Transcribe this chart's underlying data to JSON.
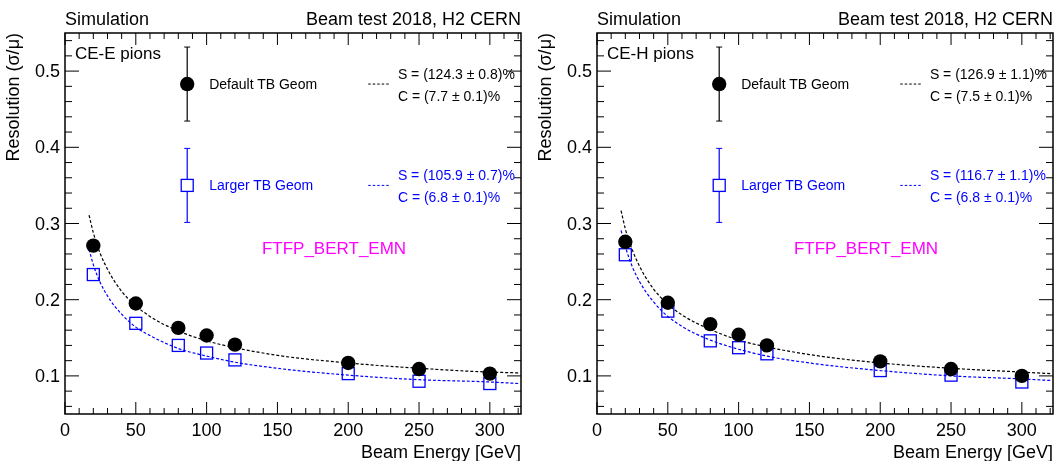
{
  "chart_data": [
    {
      "type": "scatter",
      "title": "Simulation",
      "subtitle": "Beam test 2018, H2 CERN",
      "xlabel": "Beam Energy [GeV]",
      "ylabel": "Resolution (σ/μ)",
      "annotations": [
        "CE-E pions",
        "FTFP_BERT_EMN",
        "S = (124.3 ± 0.8)%",
        "C = (7.7 ± 0.1)%",
        "S = (105.9 ± 0.7)%",
        "C = (6.8 ± 0.1)%"
      ],
      "xlim": [
        0,
        322
      ],
      "xticks": [
        0,
        {
          "value": 10,
          "label": null
        },
        {
          "value": 20,
          "label": null
        },
        {
          "value": 30,
          "label": null
        },
        {
          "value": 40,
          "label": null
        },
        50,
        {
          "value": 60,
          "label": null
        },
        {
          "value": 70,
          "label": null
        },
        {
          "value": 80,
          "label": null
        },
        {
          "value": 90,
          "label": null
        },
        100,
        {
          "value": 110,
          "label": null
        },
        {
          "value": 120,
          "label": null
        },
        {
          "value": 130,
          "label": null
        },
        {
          "value": 140,
          "label": null
        },
        150,
        {
          "value": 160,
          "label": null
        },
        {
          "value": 170,
          "label": null
        },
        {
          "value": 180,
          "label": null
        },
        {
          "value": 190,
          "label": null
        },
        200,
        {
          "value": 210,
          "label": null
        },
        {
          "value": 220,
          "label": null
        },
        {
          "value": 230,
          "label": null
        },
        {
          "value": 240,
          "label": null
        },
        250,
        {
          "value": 260,
          "label": null
        },
        {
          "value": 270,
          "label": null
        },
        {
          "value": 280,
          "label": null
        },
        {
          "value": 290,
          "label": null
        },
        300,
        {
          "value": 310,
          "label": null
        },
        {
          "value": 320,
          "label": null
        }
      ],
      "ylim": [
        0.05,
        0.55
      ],
      "yticks": [
        {
          "value": 0.06,
          "label": null
        },
        {
          "value": 0.08,
          "label": null
        },
        0.1,
        {
          "value": 0.12,
          "label": null
        },
        {
          "value": 0.14,
          "label": null
        },
        {
          "value": 0.16,
          "label": null
        },
        {
          "value": 0.18,
          "label": null
        },
        0.2,
        {
          "value": 0.22,
          "label": null
        },
        {
          "value": 0.24,
          "label": null
        },
        {
          "value": 0.26,
          "label": null
        },
        {
          "value": 0.28,
          "label": null
        },
        0.3,
        {
          "value": 0.32,
          "label": null
        },
        {
          "value": 0.34,
          "label": null
        },
        {
          "value": 0.36,
          "label": null
        },
        {
          "value": 0.38,
          "label": null
        },
        0.4,
        {
          "value": 0.42,
          "label": null
        },
        {
          "value": 0.44,
          "label": null
        },
        {
          "value": 0.46,
          "label": null
        },
        {
          "value": 0.48,
          "label": null
        },
        0.5,
        {
          "value": 0.52,
          "label": null
        },
        {
          "value": 0.54,
          "label": null
        }
      ],
      "legend": "top",
      "series": [
        {
          "name": "Default TB Geom",
          "type": "scatter",
          "marker": "circle",
          "color": "#000000",
          "x": [
            20,
            50,
            80,
            100,
            120,
            200,
            250,
            300
          ],
          "values": [
            0.271,
            0.195,
            0.163,
            0.153,
            0.141,
            0.117,
            0.109,
            0.103
          ]
        },
        {
          "name": "Larger TB Geom",
          "type": "scatter",
          "marker": "square",
          "color": "#0000ff",
          "x": [
            20,
            50,
            80,
            100,
            120,
            200,
            250,
            300
          ],
          "values": [
            0.233,
            0.169,
            0.14,
            0.13,
            0.121,
            0.103,
            0.093,
            0.09
          ]
        },
        {
          "type": "line",
          "line_style": "dashed",
          "color": "#000000",
          "x": [
            17,
            20,
            25,
            30,
            40,
            50,
            60,
            80,
            100,
            120,
            150,
            200,
            250,
            300,
            320
          ],
          "values": [
            0.311,
            0.288,
            0.26,
            0.24,
            0.211,
            0.192,
            0.178,
            0.159,
            0.146,
            0.137,
            0.127,
            0.117,
            0.11,
            0.105,
            0.104
          ]
        },
        {
          "type": "line",
          "line_style": "dashed",
          "color": "#0000ff",
          "x": [
            17,
            20,
            25,
            30,
            40,
            50,
            60,
            80,
            100,
            120,
            150,
            200,
            250,
            300,
            320
          ],
          "values": [
            0.266,
            0.246,
            0.222,
            0.205,
            0.181,
            0.164,
            0.153,
            0.136,
            0.126,
            0.118,
            0.11,
            0.101,
            0.095,
            0.092,
            0.09
          ]
        }
      ]
    },
    {
      "type": "scatter",
      "title": "Simulation",
      "subtitle": "Beam test 2018, H2 CERN",
      "xlabel": "Beam Energy [GeV]",
      "ylabel": "Resolution (σ/μ)",
      "annotations": [
        "CE-H pions",
        "FTFP_BERT_EMN",
        "S = (126.9 ± 1.1)%",
        "C = (7.5 ± 0.1)%",
        "S = (116.7 ± 1.1)%",
        "C = (6.8 ± 0.1)%"
      ],
      "xlim": [
        0,
        322
      ],
      "xticks": [
        0,
        {
          "value": 10,
          "label": null
        },
        {
          "value": 20,
          "label": null
        },
        {
          "value": 30,
          "label": null
        },
        {
          "value": 40,
          "label": null
        },
        50,
        {
          "value": 60,
          "label": null
        },
        {
          "value": 70,
          "label": null
        },
        {
          "value": 80,
          "label": null
        },
        {
          "value": 90,
          "label": null
        },
        100,
        {
          "value": 110,
          "label": null
        },
        {
          "value": 120,
          "label": null
        },
        {
          "value": 130,
          "label": null
        },
        {
          "value": 140,
          "label": null
        },
        150,
        {
          "value": 160,
          "label": null
        },
        {
          "value": 170,
          "label": null
        },
        {
          "value": 180,
          "label": null
        },
        {
          "value": 190,
          "label": null
        },
        200,
        {
          "value": 210,
          "label": null
        },
        {
          "value": 220,
          "label": null
        },
        {
          "value": 230,
          "label": null
        },
        {
          "value": 240,
          "label": null
        },
        250,
        {
          "value": 260,
          "label": null
        },
        {
          "value": 270,
          "label": null
        },
        {
          "value": 280,
          "label": null
        },
        {
          "value": 290,
          "label": null
        },
        300,
        {
          "value": 310,
          "label": null
        },
        {
          "value": 320,
          "label": null
        }
      ],
      "ylim": [
        0.05,
        0.55
      ],
      "yticks": [
        {
          "value": 0.06,
          "label": null
        },
        {
          "value": 0.08,
          "label": null
        },
        0.1,
        {
          "value": 0.12,
          "label": null
        },
        {
          "value": 0.14,
          "label": null
        },
        {
          "value": 0.16,
          "label": null
        },
        {
          "value": 0.18,
          "label": null
        },
        0.2,
        {
          "value": 0.22,
          "label": null
        },
        {
          "value": 0.24,
          "label": null
        },
        {
          "value": 0.26,
          "label": null
        },
        {
          "value": 0.28,
          "label": null
        },
        0.3,
        {
          "value": 0.32,
          "label": null
        },
        {
          "value": 0.34,
          "label": null
        },
        {
          "value": 0.36,
          "label": null
        },
        {
          "value": 0.38,
          "label": null
        },
        0.4,
        {
          "value": 0.42,
          "label": null
        },
        {
          "value": 0.44,
          "label": null
        },
        {
          "value": 0.46,
          "label": null
        },
        {
          "value": 0.48,
          "label": null
        },
        0.5,
        {
          "value": 0.52,
          "label": null
        },
        {
          "value": 0.54,
          "label": null
        }
      ],
      "legend": "top",
      "series": [
        {
          "name": "Default TB Geom",
          "type": "scatter",
          "marker": "circle",
          "color": "#000000",
          "x": [
            20,
            50,
            80,
            100,
            120,
            200,
            250,
            300
          ],
          "values": [
            0.276,
            0.196,
            0.168,
            0.154,
            0.14,
            0.119,
            0.109,
            0.1
          ]
        },
        {
          "name": "Larger TB Geom",
          "type": "scatter",
          "marker": "square",
          "color": "#0000ff",
          "x": [
            20,
            50,
            80,
            100,
            120,
            200,
            250,
            300
          ],
          "values": [
            0.259,
            0.185,
            0.146,
            0.137,
            0.129,
            0.107,
            0.101,
            0.092
          ]
        },
        {
          "type": "line",
          "line_style": "dashed",
          "color": "#000000",
          "x": [
            17,
            20,
            25,
            30,
            40,
            50,
            60,
            80,
            100,
            120,
            150,
            200,
            250,
            300,
            320
          ],
          "values": [
            0.317,
            0.293,
            0.265,
            0.244,
            0.214,
            0.194,
            0.18,
            0.161,
            0.147,
            0.138,
            0.128,
            0.117,
            0.11,
            0.105,
            0.103
          ]
        },
        {
          "type": "line",
          "line_style": "dashed",
          "color": "#0000ff",
          "x": [
            17,
            20,
            25,
            30,
            40,
            50,
            60,
            80,
            100,
            120,
            150,
            200,
            250,
            300,
            320
          ],
          "values": [
            0.291,
            0.27,
            0.243,
            0.224,
            0.197,
            0.178,
            0.165,
            0.147,
            0.135,
            0.126,
            0.117,
            0.107,
            0.1,
            0.096,
            0.094
          ]
        }
      ]
    }
  ]
}
